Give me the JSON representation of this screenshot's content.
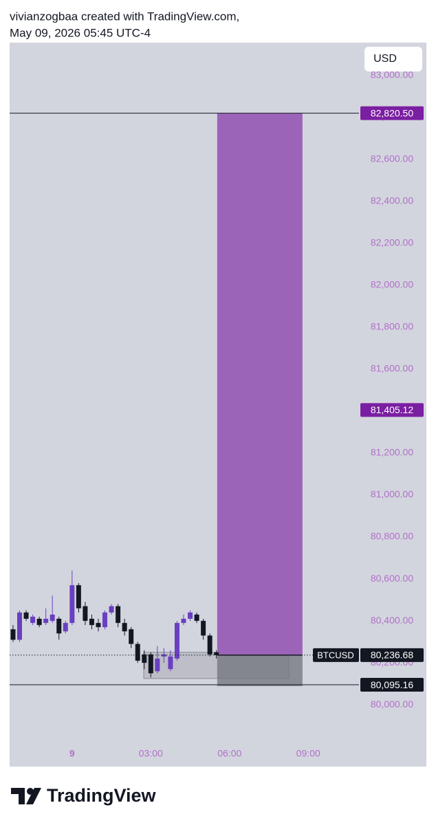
{
  "header": {
    "line1": "vivianzogbaa created with TradingView.com,",
    "line2": "May 09, 2026 05:45 UTC-4"
  },
  "currency_button": "USD",
  "footer_logo": "TradingView",
  "chart_data": {
    "type": "candlestick",
    "up_color": "#6a3fc1",
    "down_color": "#131722",
    "x": [
      -2.25,
      -2,
      -1.75,
      -1.5,
      -1.25,
      -1,
      -0.75,
      -0.5,
      -0.25,
      0,
      0.25,
      0.5,
      0.75,
      1,
      1.25,
      1.5,
      1.75,
      2,
      2.25,
      2.5,
      2.75,
      3,
      3.25,
      3.5,
      3.75,
      4,
      4.25,
      4.5,
      4.75,
      5,
      5.25,
      5.5
    ],
    "open": [
      80360,
      80310,
      80440,
      80390,
      80410,
      80390,
      80400,
      80410,
      80350,
      80390,
      80570,
      80470,
      80410,
      80390,
      80370,
      80440,
      80470,
      80390,
      80360,
      80290,
      80240,
      80240,
      80160,
      80230,
      80170,
      80220,
      80390,
      80410,
      80430,
      80400,
      80330,
      80250
    ],
    "high": [
      80380,
      80450,
      80450,
      80430,
      80420,
      80460,
      80520,
      80420,
      80400,
      80640,
      80580,
      80490,
      80430,
      80410,
      80450,
      80480,
      80480,
      80410,
      80370,
      80300,
      80260,
      80250,
      80280,
      80270,
      80260,
      80400,
      80430,
      80450,
      80440,
      80410,
      80340,
      80260
    ],
    "low": [
      80300,
      80300,
      80400,
      80380,
      80370,
      80380,
      80390,
      80310,
      80340,
      80380,
      80440,
      80380,
      80360,
      80350,
      80360,
      80430,
      80370,
      80330,
      80270,
      80200,
      80170,
      80130,
      80150,
      80200,
      80160,
      80210,
      80380,
      80400,
      80390,
      80310,
      80230,
      80220
    ],
    "close": [
      80310,
      80440,
      80410,
      80420,
      80380,
      80410,
      80430,
      80340,
      80390,
      80570,
      80460,
      80400,
      80380,
      80370,
      80440,
      80470,
      80390,
      80350,
      80290,
      80210,
      80200,
      80150,
      80220,
      80240,
      80230,
      80390,
      80410,
      80440,
      80400,
      80330,
      80240,
      80236.68
    ],
    "xlim": [
      -2.38,
      10.88
    ],
    "xticks": [
      {
        "value": 0,
        "label": "9"
      },
      {
        "value": 3,
        "label": "03:00"
      },
      {
        "value": 6,
        "label": "06:00"
      },
      {
        "value": 9,
        "label": "09:00"
      }
    ],
    "ylim": [
      79820,
      83157
    ],
    "yticks": [
      {
        "value": 80000,
        "label": "80,000.00"
      },
      {
        "value": 80200,
        "label": "80,200.00"
      },
      {
        "value": 80400,
        "label": "80,400.00"
      },
      {
        "value": 80600,
        "label": "80,600.00"
      },
      {
        "value": 80800,
        "label": "80,800.00"
      },
      {
        "value": 81000,
        "label": "81,000.00"
      },
      {
        "value": 81200,
        "label": "81,200.00"
      },
      {
        "value": 81400,
        "label": "81,400.00"
      },
      {
        "value": 81600,
        "label": "81,600.00"
      },
      {
        "value": 81800,
        "label": "81,800.00"
      },
      {
        "value": 82000,
        "label": "82,000.00"
      },
      {
        "value": 82200,
        "label": "82,200.00"
      },
      {
        "value": 82400,
        "label": "82,400.00"
      },
      {
        "value": 82600,
        "label": "82,600.00"
      },
      {
        "value": 82800,
        "label": "82,800.00"
      },
      {
        "value": 83000,
        "label": "83,000.00"
      }
    ],
    "axis_color": "#b070c8",
    "levels": [
      {
        "value": 82820.5,
        "label": "82,820.50",
        "color": "#7b1fa2",
        "line": true
      },
      {
        "value": 81405.12,
        "label": "81,405.12",
        "color": "#7b1fa2",
        "line": false
      },
      {
        "value": 80095.16,
        "label": "80,095.16",
        "color": "#131722",
        "line": true
      }
    ],
    "last_price": {
      "name": "BTCUSD",
      "value": 80236.68,
      "label": "80,236.68"
    },
    "position": {
      "x": [
        5.53,
        8.78
      ],
      "target": 82820.5,
      "entry": 80236.68,
      "stop": 80095.16,
      "target_color": "#9b64b8",
      "stop_color": "#70727c"
    },
    "box": {
      "x": [
        2.73,
        8.26
      ],
      "top": 80250,
      "bottom": 80125
    }
  }
}
